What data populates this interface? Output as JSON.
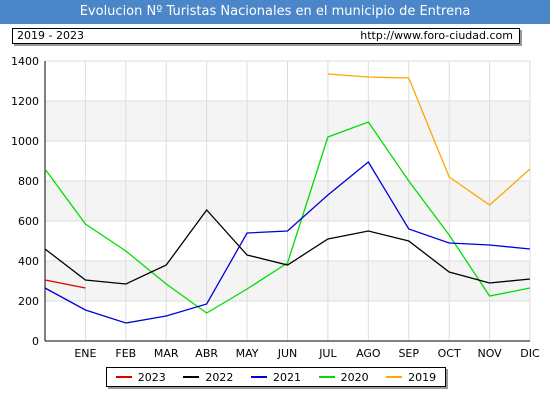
{
  "header": {
    "title": "Evolucion Nº Turistas Nacionales en el municipio de Entrena",
    "period": "2019 - 2023",
    "url": "http://www.foro-ciudad.com"
  },
  "chart_data": {
    "type": "line",
    "categories": [
      "ENE",
      "FEB",
      "MAR",
      "ABR",
      "MAY",
      "JUN",
      "JUL",
      "AGO",
      "SEP",
      "OCT",
      "NOV",
      "DIC"
    ],
    "ylim": [
      0,
      1400
    ],
    "yticks": [
      0,
      200,
      400,
      600,
      800,
      1000,
      1200,
      1400
    ],
    "grid": true,
    "legend_position": "bottom",
    "series": [
      {
        "name": "2023",
        "color": "#dd0000",
        "values": [
          265,
          null,
          null,
          null,
          null,
          null,
          null,
          null,
          null,
          null,
          null,
          null
        ],
        "start": 305
      },
      {
        "name": "2022",
        "color": "#000000",
        "values": [
          305,
          285,
          380,
          655,
          430,
          380,
          510,
          550,
          500,
          345,
          290,
          310
        ],
        "start": 460
      },
      {
        "name": "2021",
        "color": "#0000dd",
        "values": [
          155,
          90,
          125,
          185,
          540,
          550,
          730,
          895,
          560,
          490,
          480,
          460
        ],
        "start": 265
      },
      {
        "name": "2020",
        "color": "#00dd00",
        "values": [
          585,
          450,
          285,
          140,
          260,
          390,
          1020,
          1095,
          800,
          530,
          225,
          265
        ],
        "start": 860
      },
      {
        "name": "2019",
        "color": "#ffa500",
        "values": [
          null,
          null,
          null,
          null,
          null,
          null,
          1335,
          1320,
          1315,
          820,
          680,
          860
        ],
        "start": null
      }
    ]
  }
}
